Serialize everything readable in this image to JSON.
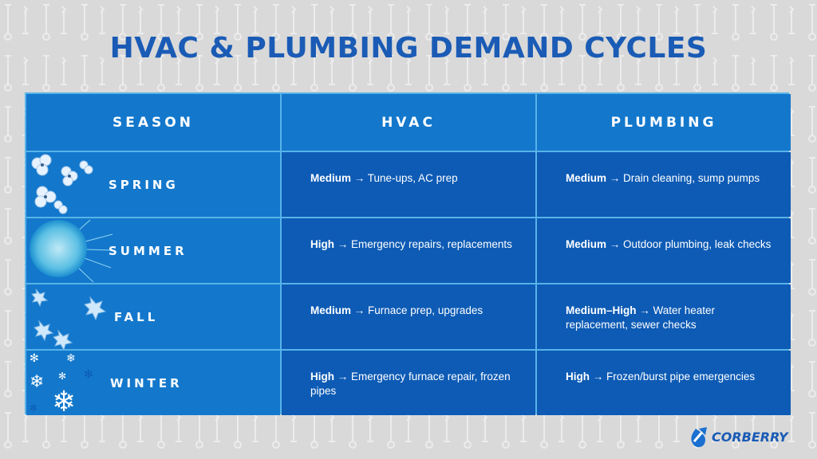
{
  "title": "HVAC & PLUMBING DEMAND CYCLES",
  "headers": {
    "season": "SEASON",
    "hvac": "HVAC",
    "plumbing": "PLUMBING"
  },
  "rows": [
    {
      "season": "SPRING",
      "hvac_level": "Medium",
      "hvac_text": " → Tune-ups, AC prep",
      "plumbing_level": "Medium",
      "plumbing_text": " → Drain cleaning, sump pumps"
    },
    {
      "season": "SUMMER",
      "hvac_level": "High",
      "hvac_text": " → Emergency repairs, replacements",
      "plumbing_level": "Medium",
      "plumbing_text": " → Outdoor plumbing, leak checks"
    },
    {
      "season": "FALL",
      "hvac_level": "Medium",
      "hvac_text": " → Furnace prep, upgrades",
      "plumbing_level": "Medium–High",
      "plumbing_text": " → Water heater replacement, sewer checks"
    },
    {
      "season": "WINTER",
      "hvac_level": "High",
      "hvac_text": " → Emergency furnace repair, frozen pipes",
      "plumbing_level": "High",
      "plumbing_text": " → Frozen/burst pipe emergencies"
    }
  ],
  "logo": {
    "text": "CORBERRY",
    "icon": "arrow-drop-logo-icon"
  },
  "colors": {
    "background": "#d9d9d9",
    "title": "#1a5bb5",
    "header": "#1378cc",
    "data_cell": "#0d5bb5",
    "grid": "#58b3e8"
  }
}
